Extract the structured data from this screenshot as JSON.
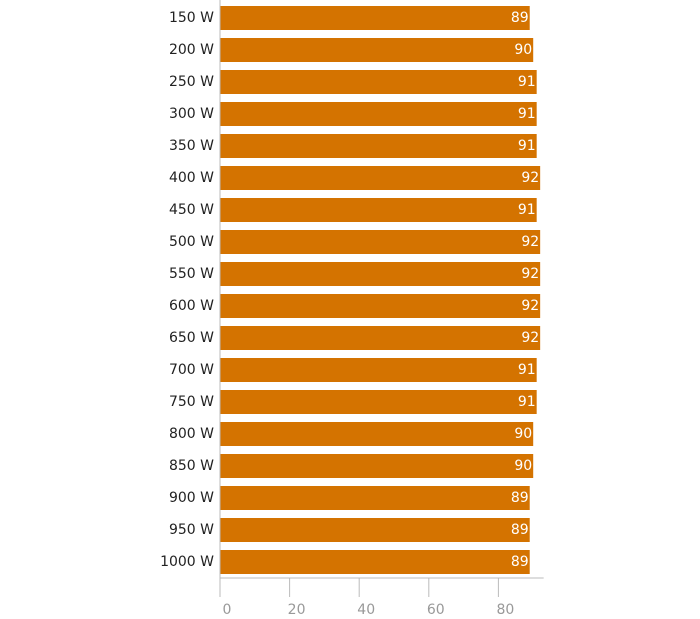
{
  "chart_data": {
    "type": "bar",
    "orientation": "horizontal",
    "categories": [
      "150 W",
      "200 W",
      "250 W",
      "300 W",
      "350 W",
      "400 W",
      "450 W",
      "500 W",
      "550 W",
      "600 W",
      "650 W",
      "700 W",
      "750 W",
      "800 W",
      "850 W",
      "900 W",
      "950 W",
      "1000 W"
    ],
    "values": [
      89,
      90,
      91,
      91,
      91,
      92,
      91,
      92,
      92,
      92,
      92,
      91,
      91,
      90,
      90,
      89,
      89,
      89
    ],
    "xlim": [
      0,
      93
    ],
    "x_ticks": [
      "0",
      "20",
      "40",
      "60",
      "80"
    ],
    "x_tick_values": [
      0,
      20,
      40,
      60,
      80
    ],
    "title": "",
    "xlabel": "",
    "ylabel": "",
    "grid": false,
    "legend": "none",
    "colors": {
      "bar": "#d47300",
      "value_text": "#ffffff",
      "category_text": "#222222",
      "tick_text": "#999999",
      "axis": "#bbbbbb"
    }
  }
}
